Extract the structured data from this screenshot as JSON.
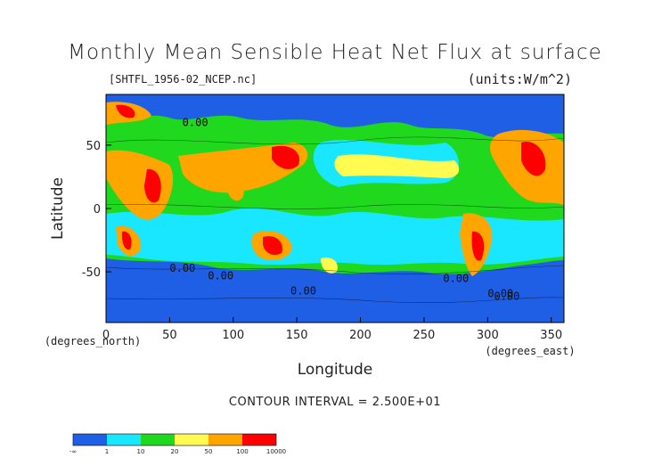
{
  "header": {
    "title": "Monthly Mean Sensible Heat Net Flux at surface",
    "file": "[SHTFL_1956-02_NCEP.nc]",
    "units": "(units:W/m^2)"
  },
  "footer": {
    "contour_interval": "CONTOUR INTERVAL = 2.500E+01"
  },
  "chart_data": {
    "type": "heatmap",
    "title": "Monthly Mean Sensible Heat Net Flux at surface",
    "xlabel": "Longitude",
    "xunit": "(degrees_east)",
    "ylabel": "Latitude",
    "yunit": "(degrees_north)",
    "xlim": [
      0,
      360
    ],
    "ylim": [
      -90,
      90
    ],
    "xticks": [
      0,
      50,
      100,
      150,
      200,
      250,
      300,
      350
    ],
    "yticks": [
      -50,
      0,
      50
    ],
    "contour_labels": [
      "0.00",
      "0.00",
      "0.00",
      "0.00",
      "0.00",
      "0.00",
      "0.00"
    ],
    "colorbar": {
      "colors": [
        "#1f5fe6",
        "#18e7ff",
        "#20d81e",
        "#fffb50",
        "#ffa500",
        "#ff0000"
      ],
      "tick_labels": [
        "-∞",
        "1",
        "10",
        "20",
        "50",
        "100",
        "10000"
      ]
    }
  }
}
